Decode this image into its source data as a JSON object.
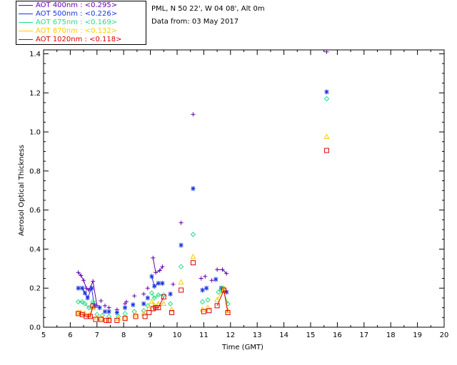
{
  "header": {
    "station": "PML, N 50 22', W 04 08', Alt 0m",
    "date_line": "Data from: 03 May 2017"
  },
  "legend": [
    {
      "label": "AOT  400nm : <0.295>",
      "color": "#6600aa"
    },
    {
      "label": "AOT  500nm : <0.226>",
      "color": "#1a33dd"
    },
    {
      "label": "AOT  675nm : <0.169>",
      "color": "#22dd88"
    },
    {
      "label": "AOT  870nm : <0.132>",
      "color": "#ffcc00"
    },
    {
      "label": "AOT 1020nm : <0.118>",
      "color": "#dd0000"
    }
  ],
  "chart_data": {
    "type": "scatter",
    "xlabel": "Time (GMT)",
    "ylabel": "Aerosol Optical Thickness",
    "xlim": [
      5,
      20
    ],
    "ylim": [
      0,
      1.42
    ],
    "xticks": [
      "5",
      "6",
      "7",
      "8",
      "9",
      "10",
      "11",
      "12",
      "13",
      "14",
      "15",
      "16",
      "17",
      "18",
      "19",
      "20"
    ],
    "yticks": [
      "0.0",
      "0.2",
      "0.4",
      "0.6",
      "0.8",
      "1.0",
      "1.2",
      "1.4"
    ],
    "series": [
      {
        "name": "AOT 400nm",
        "color": "#6600aa",
        "marker": "plus",
        "points": [
          [
            6.3,
            0.28
          ],
          [
            6.4,
            0.265
          ],
          [
            6.5,
            0.24
          ],
          [
            6.6,
            0.2
          ],
          [
            6.7,
            0.19
          ],
          [
            6.85,
            0.235
          ],
          [
            7.0,
            0.11
          ],
          [
            7.15,
            0.135
          ],
          [
            7.3,
            0.11
          ],
          [
            7.45,
            0.1
          ],
          [
            7.75,
            0.09
          ],
          [
            8.05,
            0.12
          ],
          [
            8.1,
            0.13
          ],
          [
            8.4,
            0.16
          ],
          [
            8.75,
            0.17
          ],
          [
            8.9,
            0.2
          ],
          [
            9.1,
            0.355
          ],
          [
            9.2,
            0.28
          ],
          [
            9.35,
            0.29
          ],
          [
            9.45,
            0.31
          ],
          [
            9.85,
            0.22
          ],
          [
            10.15,
            0.535
          ],
          [
            10.6,
            1.09
          ],
          [
            10.9,
            0.25
          ],
          [
            11.05,
            0.26
          ],
          [
            11.3,
            0.24
          ],
          [
            11.5,
            0.295
          ],
          [
            11.7,
            0.295
          ],
          [
            11.85,
            0.275
          ],
          [
            15.6,
            1.41
          ]
        ],
        "lines": [
          [
            0,
            6
          ],
          [
            16,
            19
          ],
          [
            26,
            28
          ]
        ]
      },
      {
        "name": "AOT 500nm",
        "color": "#1a33dd",
        "marker": "star",
        "points": [
          [
            6.3,
            0.2
          ],
          [
            6.45,
            0.2
          ],
          [
            6.55,
            0.175
          ],
          [
            6.65,
            0.15
          ],
          [
            6.8,
            0.2
          ],
          [
            6.9,
            0.11
          ],
          [
            7.1,
            0.1
          ],
          [
            7.3,
            0.08
          ],
          [
            7.45,
            0.08
          ],
          [
            7.75,
            0.075
          ],
          [
            8.05,
            0.1
          ],
          [
            8.35,
            0.115
          ],
          [
            8.75,
            0.12
          ],
          [
            8.9,
            0.15
          ],
          [
            9.05,
            0.26
          ],
          [
            9.15,
            0.21
          ],
          [
            9.3,
            0.225
          ],
          [
            9.45,
            0.225
          ],
          [
            9.75,
            0.17
          ],
          [
            10.15,
            0.42
          ],
          [
            10.6,
            0.71
          ],
          [
            10.95,
            0.19
          ],
          [
            11.1,
            0.2
          ],
          [
            11.45,
            0.245
          ],
          [
            11.65,
            0.2
          ],
          [
            11.85,
            0.18
          ],
          [
            15.6,
            1.205
          ]
        ],
        "lines": [
          [
            0,
            5
          ],
          [
            14,
            17
          ],
          [
            24,
            25
          ]
        ]
      },
      {
        "name": "AOT 675nm",
        "color": "#22dd88",
        "marker": "diamond",
        "points": [
          [
            6.3,
            0.13
          ],
          [
            6.45,
            0.13
          ],
          [
            6.55,
            0.12
          ],
          [
            6.7,
            0.1
          ],
          [
            6.85,
            0.13
          ],
          [
            7.0,
            0.065
          ],
          [
            7.2,
            0.06
          ],
          [
            7.45,
            0.055
          ],
          [
            7.8,
            0.055
          ],
          [
            8.05,
            0.07
          ],
          [
            8.4,
            0.08
          ],
          [
            8.75,
            0.085
          ],
          [
            8.9,
            0.11
          ],
          [
            9.05,
            0.175
          ],
          [
            9.15,
            0.15
          ],
          [
            9.3,
            0.165
          ],
          [
            9.5,
            0.165
          ],
          [
            9.75,
            0.12
          ],
          [
            10.15,
            0.31
          ],
          [
            10.6,
            0.475
          ],
          [
            10.95,
            0.13
          ],
          [
            11.15,
            0.14
          ],
          [
            11.55,
            0.18
          ],
          [
            11.7,
            0.2
          ],
          [
            11.9,
            0.12
          ],
          [
            15.6,
            1.17
          ]
        ],
        "lines": [
          [
            0,
            4
          ],
          [
            13,
            16
          ],
          [
            22,
            24
          ]
        ]
      },
      {
        "name": "AOT 870nm",
        "color": "#ffcc00",
        "marker": "triangle",
        "points": [
          [
            6.3,
            0.075
          ],
          [
            6.4,
            0.075
          ],
          [
            6.55,
            0.07
          ],
          [
            6.7,
            0.06
          ],
          [
            6.85,
            0.1
          ],
          [
            7.0,
            0.05
          ],
          [
            7.2,
            0.045
          ],
          [
            7.45,
            0.04
          ],
          [
            7.8,
            0.045
          ],
          [
            8.05,
            0.05
          ],
          [
            8.45,
            0.065
          ],
          [
            8.75,
            0.07
          ],
          [
            8.95,
            0.095
          ],
          [
            9.05,
            0.13
          ],
          [
            9.15,
            0.11
          ],
          [
            9.3,
            0.12
          ],
          [
            9.5,
            0.12
          ],
          [
            9.8,
            0.09
          ],
          [
            10.15,
            0.23
          ],
          [
            10.6,
            0.36
          ],
          [
            10.95,
            0.09
          ],
          [
            11.15,
            0.1
          ],
          [
            11.5,
            0.14
          ],
          [
            11.75,
            0.2
          ],
          [
            11.9,
            0.085
          ],
          [
            15.6,
            0.975
          ]
        ],
        "lines": [
          [
            0,
            4
          ],
          [
            13,
            16
          ],
          [
            22,
            24
          ]
        ]
      },
      {
        "name": "AOT 1020nm",
        "color": "#dd0000",
        "marker": "square",
        "points": [
          [
            6.3,
            0.07
          ],
          [
            6.45,
            0.065
          ],
          [
            6.6,
            0.055
          ],
          [
            6.75,
            0.055
          ],
          [
            6.85,
            0.11
          ],
          [
            6.95,
            0.04
          ],
          [
            7.15,
            0.04
          ],
          [
            7.35,
            0.035
          ],
          [
            7.45,
            0.035
          ],
          [
            7.75,
            0.035
          ],
          [
            8.05,
            0.045
          ],
          [
            8.45,
            0.055
          ],
          [
            8.8,
            0.055
          ],
          [
            8.95,
            0.075
          ],
          [
            9.1,
            0.095
          ],
          [
            9.2,
            0.1
          ],
          [
            9.3,
            0.1
          ],
          [
            9.5,
            0.155
          ],
          [
            9.8,
            0.075
          ],
          [
            10.15,
            0.19
          ],
          [
            10.6,
            0.33
          ],
          [
            11.0,
            0.08
          ],
          [
            11.2,
            0.085
          ],
          [
            11.5,
            0.11
          ],
          [
            11.75,
            0.19
          ],
          [
            11.9,
            0.075
          ],
          [
            15.6,
            0.905
          ]
        ],
        "lines": [
          [
            0,
            4
          ],
          [
            14,
            17
          ],
          [
            23,
            25
          ]
        ]
      }
    ]
  }
}
